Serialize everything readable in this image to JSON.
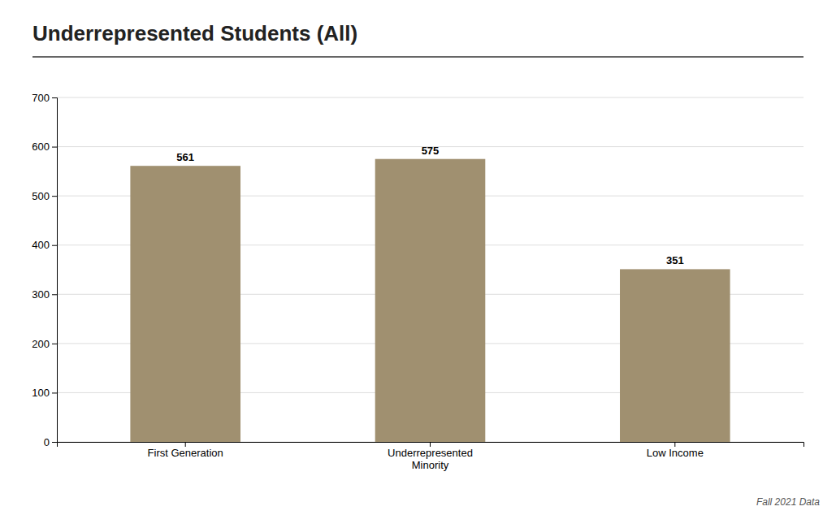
{
  "chart_data": {
    "type": "bar",
    "title": "Underrepresented Students (All)",
    "categories": [
      "First Generation",
      "Underrepresented\nMinority",
      "Low Income"
    ],
    "values": [
      561,
      575,
      351
    ],
    "color": "#a09070",
    "ylim": [
      0,
      700
    ],
    "yticks": [
      0,
      100,
      200,
      300,
      400,
      500,
      600,
      700
    ],
    "grid": true,
    "data_labels": true,
    "annotations": [
      "Fall 2021 Data"
    ]
  }
}
